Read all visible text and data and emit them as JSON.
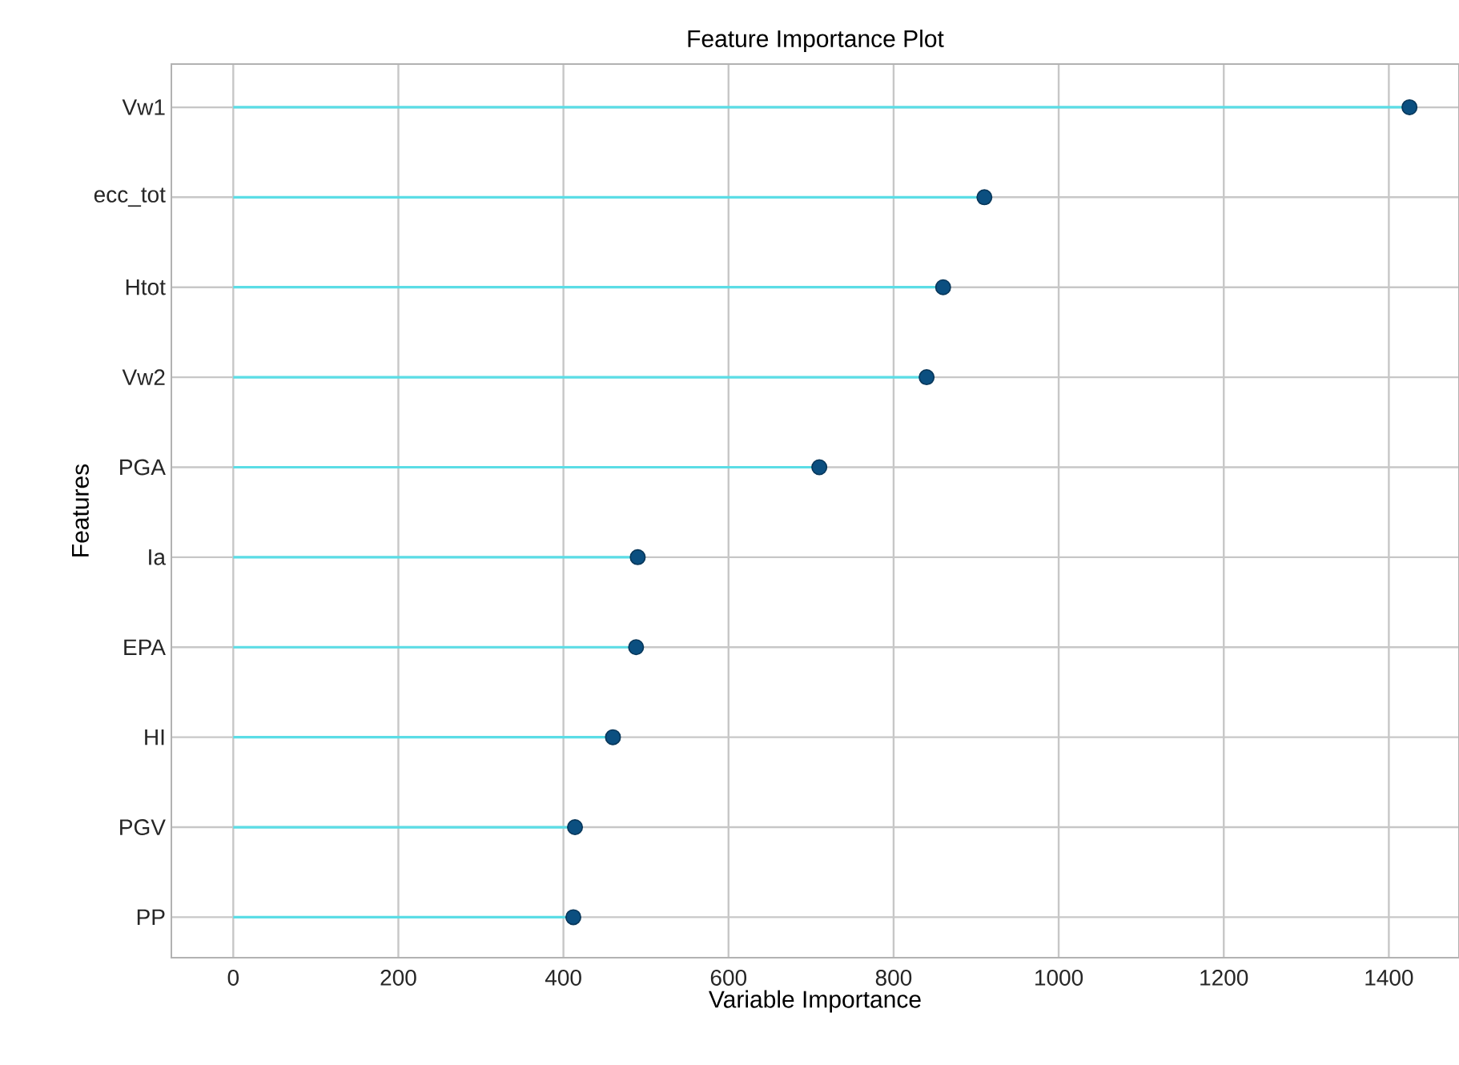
{
  "chart_data": {
    "type": "lollipop",
    "orientation": "horizontal",
    "title": "Feature Importance Plot",
    "xlabel": "Variable Importance",
    "ylabel": "Features",
    "categories": [
      "Vw1",
      "ecc_tot",
      "Htot",
      "Vw2",
      "PGA",
      "Ia",
      "EPA",
      "HI",
      "PGV",
      "PP"
    ],
    "values": [
      1425,
      910,
      860,
      840,
      710,
      490,
      488,
      460,
      414,
      412
    ],
    "color": "#0b4f80",
    "marker": "circle",
    "grid": true,
    "xlim": [
      -75,
      1485
    ],
    "xticks": [
      0,
      200,
      400,
      600,
      800,
      1000,
      1200,
      1400
    ]
  }
}
